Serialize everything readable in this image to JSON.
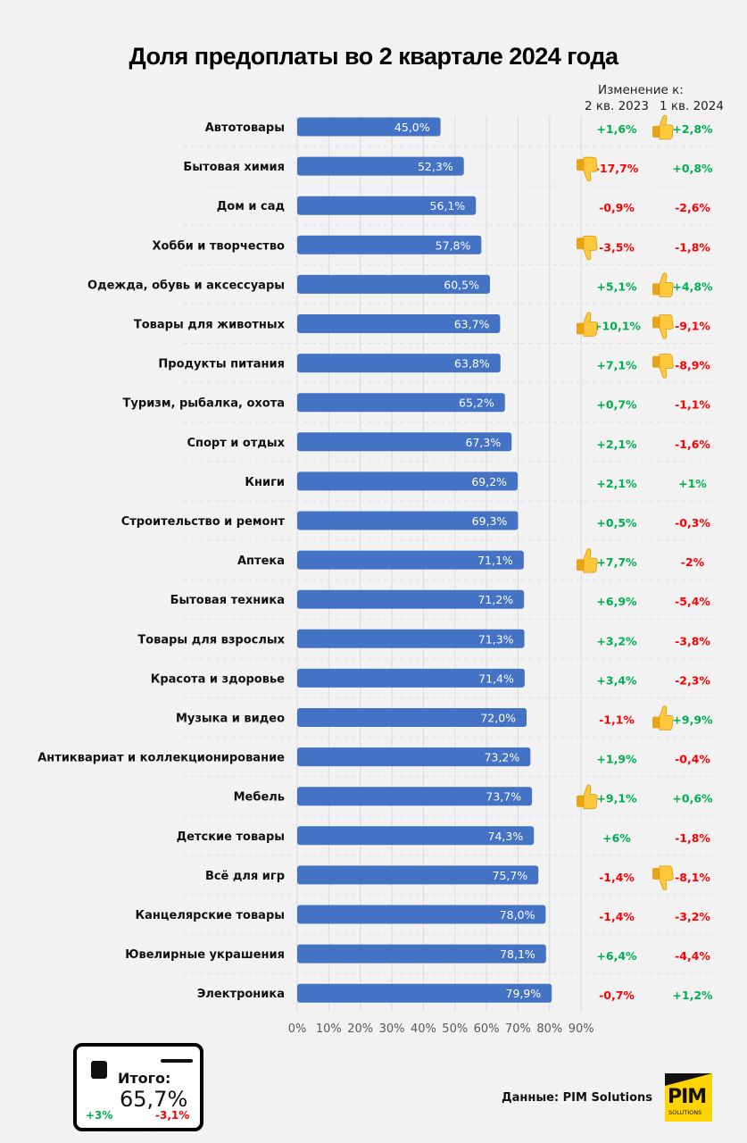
{
  "chart_data": {
    "type": "bar",
    "orientation": "horizontal",
    "title": "Доля предоплаты во 2 квартале 2024 года",
    "xlabel": "",
    "ylabel": "",
    "xlim": [
      0,
      90
    ],
    "x_ticks": [
      "0%",
      "10%",
      "20%",
      "30%",
      "40%",
      "50%",
      "60%",
      "70%",
      "80%",
      "90%"
    ],
    "grid": true,
    "value_suffix": "%",
    "categories": [
      "Автотовары",
      "Бытовая химия",
      "Дом и сад",
      "Хобби и творчество",
      "Одежда, обувь и аксессуары",
      "Товары для животных",
      "Продукты питания",
      "Туризм, рыбалка, охота",
      "Спорт и отдых",
      "Книги",
      "Строительство и ремонт",
      "Аптека",
      "Бытовая техника",
      "Товары для взрослых",
      "Красота и здоровье",
      "Музыка и видео",
      "Антиквариат и коллекционирование",
      "Мебель",
      "Детские товары",
      "Всё для игр",
      "Канцелярские товары",
      "Ювелирные украшения",
      "Электроника"
    ],
    "values": [
      45.0,
      52.3,
      56.1,
      57.8,
      60.5,
      63.7,
      63.8,
      65.2,
      67.3,
      69.2,
      69.3,
      71.1,
      71.2,
      71.3,
      71.4,
      72.0,
      73.2,
      73.7,
      74.3,
      75.7,
      78.0,
      78.1,
      79.9
    ],
    "value_labels": [
      "45,0%",
      "52,3%",
      "56,1%",
      "57,8%",
      "60,5%",
      "63,7%",
      "63,8%",
      "65,2%",
      "67,3%",
      "69,2%",
      "69,3%",
      "71,1%",
      "71,2%",
      "71,3%",
      "71,4%",
      "72,0%",
      "73,2%",
      "73,7%",
      "74,3%",
      "75,7%",
      "78,0%",
      "78,1%",
      "79,9%"
    ],
    "change_header": "Изменение к:",
    "change_columns": [
      "2 кв. 2023",
      "1 кв. 2024"
    ],
    "changes_vs_q2_2023": [
      "+1,6%",
      "-17,7%",
      "-0,9%",
      "-3,5%",
      "+5,1%",
      "+10,1%",
      "+7,1%",
      "+0,7%",
      "+2,1%",
      "+2,1%",
      "+0,5%",
      "+7,7%",
      "+6,9%",
      "+3,2%",
      "+3,4%",
      "-1,1%",
      "+1,9%",
      "+9,1%",
      "+6%",
      "-1,4%",
      "-1,4%",
      "+6,4%",
      "-0,7%"
    ],
    "changes_vs_q1_2024": [
      "+2,8%",
      "+0,8%",
      "-2,6%",
      "-1,8%",
      "+4,8%",
      "-9,1%",
      "-8,9%",
      "-1,1%",
      "-1,6%",
      "+1%",
      "-0,3%",
      "-2%",
      "-5,4%",
      "-3,8%",
      "-2,3%",
      "+9,9%",
      "-0,4%",
      "+0,6%",
      "-1,8%",
      "-8,1%",
      "-3,2%",
      "-4,4%",
      "+1,2%"
    ],
    "icons_q2_2023": [
      "",
      "thumbs-down",
      "",
      "thumbs-down",
      "",
      "thumbs-up",
      "",
      "",
      "",
      "",
      "",
      "thumbs-up",
      "",
      "",
      "",
      "",
      "",
      "thumbs-up",
      "",
      "",
      "",
      "",
      ""
    ],
    "icons_q1_2024": [
      "thumbs-up",
      "",
      "",
      "",
      "thumbs-up",
      "thumbs-down",
      "thumbs-down",
      "",
      "",
      "",
      "",
      "",
      "",
      "",
      "",
      "thumbs-up",
      "",
      "",
      "",
      "thumbs-down",
      "",
      "",
      ""
    ]
  },
  "colors": {
    "bar": "#4472C4",
    "positive": "#00B050",
    "negative": "#FF0000",
    "background": "#F2F2F2"
  },
  "total_card": {
    "label": "Итого:",
    "value": "65,7%",
    "change_q2_2023": "+3%",
    "change_q1_2024": "-3,1%"
  },
  "source": "Данные: PIM Solutions",
  "logo": {
    "main": "PIM",
    "sub": "SOLUTIONS"
  }
}
